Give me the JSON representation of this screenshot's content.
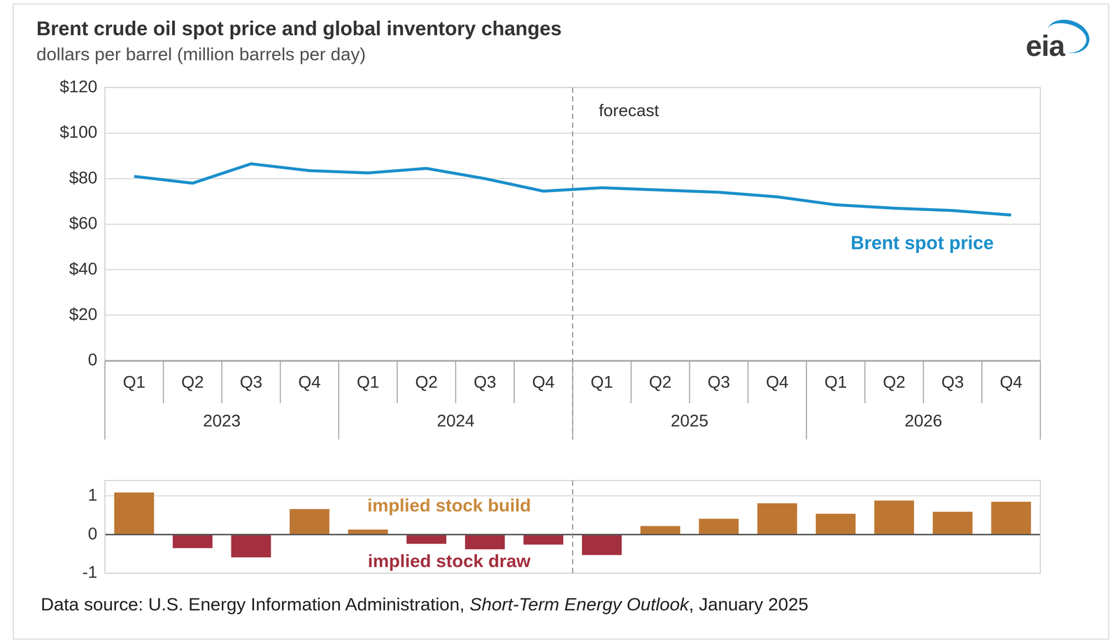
{
  "title": "Brent crude oil spot price and global inventory changes",
  "subtitle": "dollars per barrel (million barrels per day)",
  "logo": "eia",
  "source": "Data source: U.S. Energy Information Administration, Short-Term Energy Outlook, January 2025",
  "source_italic": "Short-Term Energy Outlook",
  "chart_data": [
    {
      "type": "line",
      "categories": [
        "Q1",
        "Q2",
        "Q3",
        "Q4",
        "Q1",
        "Q2",
        "Q3",
        "Q4",
        "Q1",
        "Q2",
        "Q3",
        "Q4",
        "Q1",
        "Q2",
        "Q3",
        "Q4"
      ],
      "groups": [
        "2023",
        "2024",
        "2025",
        "2026"
      ],
      "values": [
        81,
        78,
        86.5,
        83.5,
        82.5,
        84.5,
        80,
        74.5,
        76,
        75,
        74,
        72,
        68.5,
        67,
        66,
        64
      ],
      "color": "#1B8FCB",
      "ylim": [
        0,
        120
      ],
      "yticks": [
        0,
        {
          "value": 20,
          "label": "$20"
        },
        {
          "value": 40,
          "label": "$40"
        },
        {
          "value": 60,
          "label": "$60"
        },
        {
          "value": 80,
          "label": "$80"
        },
        {
          "value": 100,
          "label": "$100"
        },
        {
          "value": 120,
          "label": "$120"
        }
      ],
      "grid": true,
      "forecast_start": "2025",
      "annotations": [
        "forecast",
        "Brent spot price"
      ]
    },
    {
      "type": "bar",
      "categories": [
        "Q1",
        "Q2",
        "Q3",
        "Q4",
        "Q1",
        "Q2",
        "Q3",
        "Q4",
        "Q1",
        "Q2",
        "Q3",
        "Q4",
        "Q1",
        "Q2",
        "Q3",
        "Q4"
      ],
      "groups": [
        "2023",
        "2024",
        "2025",
        "2026"
      ],
      "values": [
        1.09,
        -0.35,
        -0.59,
        0.66,
        0.13,
        -0.24,
        -0.38,
        -0.26,
        -0.53,
        0.22,
        0.41,
        0.81,
        0.54,
        0.88,
        0.59,
        0.85
      ],
      "colors": [
        "#BE7733",
        "#A4303F",
        "#A4303F",
        "#BE7733",
        "#BE7733",
        "#A4303F",
        "#A4303F",
        "#A4303F",
        "#A4303F",
        "#BE7733",
        "#BE7733",
        "#BE7733",
        "#BE7733",
        "#BE7733",
        "#BE7733",
        "#BE7733"
      ],
      "ylim": [
        -1,
        1.4
      ],
      "yticks": [
        -1,
        0,
        1
      ],
      "grid": true,
      "tick_labels": "y",
      "forecast_start": "2025",
      "annotations": [
        "implied stock build",
        "implied stock draw"
      ]
    }
  ]
}
